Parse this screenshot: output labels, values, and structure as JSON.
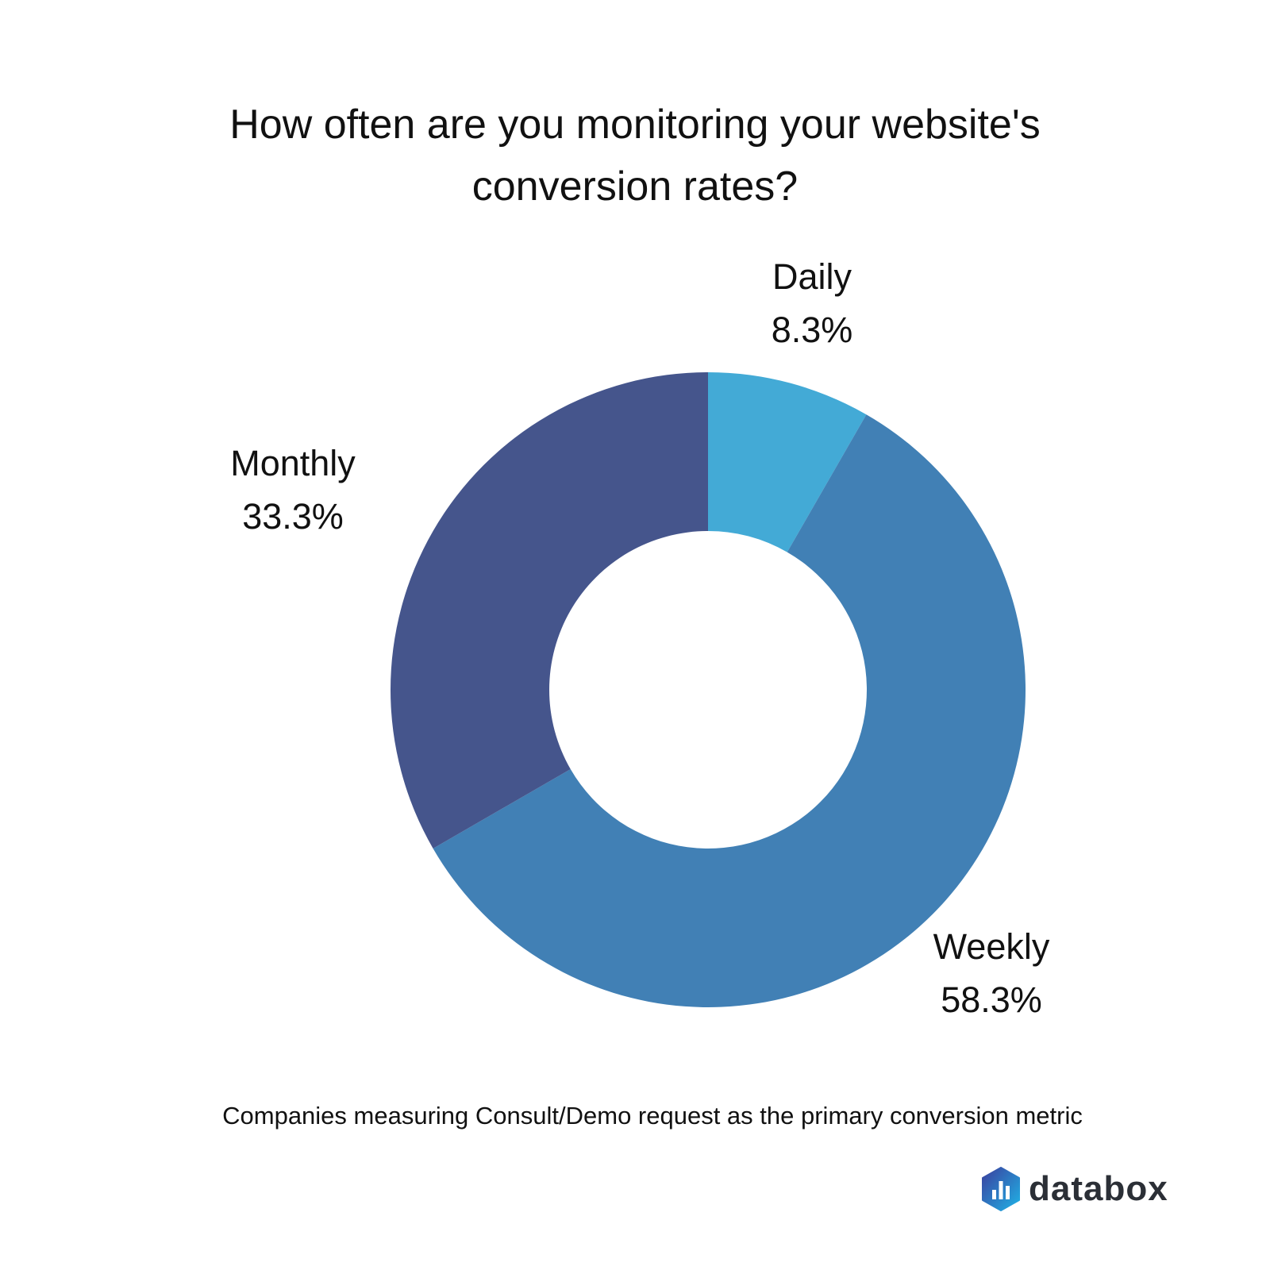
{
  "chart_data": {
    "type": "pie",
    "variant": "donut",
    "title": "How often are you monitoring your website's conversion rates?",
    "title_lines": [
      "How often are you monitoring your website's",
      "conversion rates?"
    ],
    "subtitle": "Companies measuring Consult/Demo request as the primary conversion metric",
    "categories": [
      "Daily",
      "Weekly",
      "Monthly"
    ],
    "values": [
      8.3,
      58.3,
      33.3
    ],
    "value_labels": [
      "8.3%",
      "58.3%",
      "33.3%"
    ],
    "colors": [
      "#43aad6",
      "#4180b5",
      "#45558c"
    ]
  },
  "branding": {
    "logo_text": "databox"
  }
}
